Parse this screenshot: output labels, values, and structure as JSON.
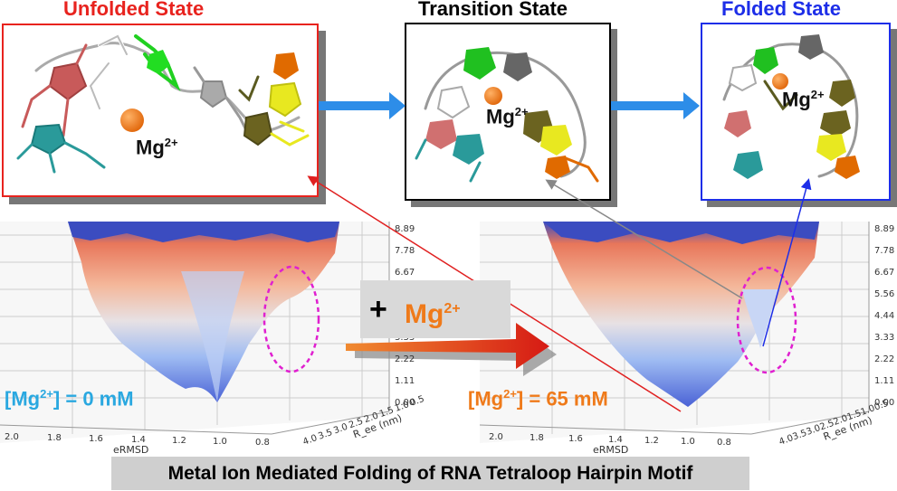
{
  "states": {
    "unfolded": {
      "title": "Unfolded State",
      "ion_label": "Mg",
      "ion_charge": "2+",
      "title_color": "#e8231e",
      "border_color": "#e8231e"
    },
    "transition": {
      "title": "Transition State",
      "ion_label": "Mg",
      "ion_charge": "2+",
      "title_color": "#000000",
      "border_color": "#000000"
    },
    "folded": {
      "title": "Folded State",
      "ion_label": "Mg",
      "ion_charge": "2+",
      "title_color": "#1d2ee8",
      "border_color": "#1d2ee8"
    }
  },
  "addition": {
    "plus": "+",
    "ion_label": "Mg",
    "ion_charge": "2+"
  },
  "conditions": {
    "left": {
      "open": "[Mg",
      "charge": "2+",
      "close": "] = 0 mM",
      "color": "#2aa8e0"
    },
    "right": {
      "open": "[Mg",
      "charge": "2+",
      "close": "] = 65 mM",
      "color": "#ef7a1a"
    }
  },
  "energy_axis_ticks": [
    "8.89",
    "7.78",
    "6.67",
    "5.56",
    "4.44",
    "3.33",
    "2.22",
    "1.11",
    "0.00"
  ],
  "ermsd_axis": {
    "label": "eRMSD",
    "ticks": [
      "2.0",
      "1.8",
      "1.6",
      "1.4",
      "1.2",
      "1.0",
      "0.8"
    ]
  },
  "ree_axis": {
    "label": "R_ee (nm)",
    "ticks": [
      "4.0",
      "3.5",
      "3.0",
      "2.5",
      "2.0",
      "1.5",
      "1.0",
      "0.5"
    ]
  },
  "caption": "Metal Ion Mediated Folding of RNA Tetraloop Hairpin Motif",
  "colors": {
    "ion": "#ef7a1a",
    "arrow_blue": "#2d8de8",
    "arrow_red": "#e02020",
    "highlight": "#e020d0"
  },
  "icons": [
    "rna-structure",
    "mg-ion-sphere",
    "free-energy-surface"
  ]
}
